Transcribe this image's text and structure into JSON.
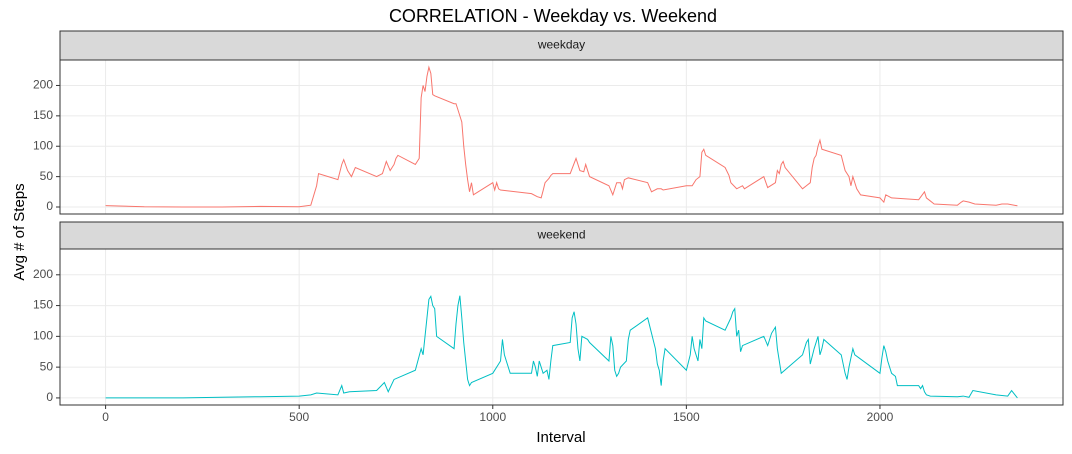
{
  "chart_data": {
    "type": "line",
    "facet": true,
    "title": "CORRELATION - Weekday vs. Weekend",
    "x_label": "Interval",
    "y_label": "Avg # of Steps",
    "xlim": [
      -117.75,
      2472.75
    ],
    "xticks": [
      0,
      500,
      1000,
      1500,
      2000
    ],
    "ylim": [
      -11.5,
      241.9
    ],
    "yticks": [
      0,
      50,
      100,
      150,
      200
    ],
    "grid": true,
    "series": [
      {
        "name": "weekday",
        "color": "#f8766d",
        "x": [
          0,
          100,
          200,
          300,
          400,
          500,
          530,
          545,
          550,
          600,
          610,
          615,
          625,
          635,
          645,
          700,
          715,
          725,
          735,
          745,
          750,
          755,
          800,
          810,
          815,
          820,
          825,
          830,
          835,
          840,
          845,
          850,
          900,
          905,
          910,
          915,
          920,
          925,
          930,
          935,
          940,
          945,
          950,
          1000,
          1005,
          1010,
          1015,
          1020,
          1100,
          1115,
          1125,
          1130,
          1135,
          1145,
          1150,
          1155,
          1200,
          1215,
          1225,
          1235,
          1240,
          1250,
          1300,
          1310,
          1320,
          1330,
          1335,
          1340,
          1350,
          1400,
          1410,
          1425,
          1430,
          1435,
          1440,
          1500,
          1515,
          1525,
          1535,
          1540,
          1545,
          1550,
          1600,
          1610,
          1615,
          1630,
          1645,
          1650,
          1700,
          1710,
          1730,
          1735,
          1740,
          1745,
          1750,
          1755,
          1800,
          1810,
          1820,
          1825,
          1830,
          1835,
          1840,
          1845,
          1850,
          1900,
          1910,
          1920,
          1925,
          1930,
          1940,
          1950,
          2000,
          2010,
          2015,
          2030,
          2100,
          2115,
          2120,
          2130,
          2140,
          2200,
          2210,
          2215,
          2230,
          2245,
          2300,
          2315,
          2330,
          2355
        ],
        "values": [
          2.3,
          0.4,
          0,
          0,
          1,
          0.5,
          3,
          35,
          55,
          45,
          70,
          78,
          60,
          50,
          65,
          50,
          55,
          75,
          60,
          70,
          80,
          85,
          70,
          80,
          180,
          200,
          190,
          215,
          230,
          220,
          185,
          183,
          170,
          170,
          160,
          150,
          140,
          100,
          70,
          45,
          25,
          40,
          20,
          40,
          28,
          40,
          30,
          28,
          22,
          17,
          15,
          27,
          40,
          47,
          52,
          55,
          55,
          80,
          60,
          58,
          70,
          50,
          35,
          20,
          40,
          40,
          30,
          45,
          48,
          40,
          25,
          30,
          30,
          30,
          28,
          35,
          35,
          45,
          50,
          90,
          95,
          85,
          65,
          52,
          40,
          30,
          35,
          30,
          50,
          32,
          40,
          60,
          55,
          70,
          75,
          65,
          30,
          35,
          40,
          65,
          80,
          85,
          100,
          110,
          95,
          85,
          60,
          50,
          35,
          50,
          30,
          20,
          15,
          8,
          20,
          15,
          12,
          25,
          15,
          10,
          5,
          3,
          8,
          10,
          8,
          5,
          3,
          5,
          5,
          2
        ]
      },
      {
        "name": "weekend",
        "color": "#00bfc4",
        "x": [
          0,
          100,
          200,
          300,
          400,
          500,
          530,
          545,
          600,
          610,
          615,
          630,
          700,
          720,
          730,
          745,
          800,
          815,
          820,
          830,
          835,
          840,
          845,
          850,
          855,
          900,
          905,
          910,
          915,
          920,
          925,
          930,
          935,
          940,
          945,
          1000,
          1020,
          1025,
          1030,
          1035,
          1045,
          1100,
          1105,
          1110,
          1115,
          1120,
          1130,
          1140,
          1145,
          1150,
          1155,
          1200,
          1205,
          1210,
          1215,
          1220,
          1225,
          1230,
          1245,
          1250,
          1300,
          1305,
          1310,
          1315,
          1320,
          1325,
          1330,
          1345,
          1350,
          1355,
          1400,
          1410,
          1420,
          1425,
          1430,
          1435,
          1440,
          1445,
          1500,
          1510,
          1515,
          1520,
          1530,
          1535,
          1540,
          1545,
          1550,
          1600,
          1615,
          1620,
          1625,
          1630,
          1635,
          1640,
          1645,
          1700,
          1710,
          1720,
          1730,
          1735,
          1740,
          1745,
          1800,
          1810,
          1815,
          1820,
          1830,
          1840,
          1845,
          1850,
          1855,
          1900,
          1910,
          1915,
          1920,
          1930,
          1935,
          2000,
          2005,
          2010,
          2015,
          2020,
          2030,
          2040,
          2045,
          2100,
          2105,
          2110,
          2115,
          2120,
          2130,
          2200,
          2215,
          2230,
          2240,
          2300,
          2330,
          2340,
          2355
        ],
        "values": [
          0,
          0,
          0,
          1,
          2,
          3,
          5,
          8,
          5,
          20,
          8,
          10,
          12,
          25,
          10,
          30,
          45,
          80,
          70,
          130,
          160,
          165,
          150,
          145,
          100,
          80,
          120,
          150,
          166,
          130,
          90,
          60,
          30,
          20,
          25,
          40,
          60,
          95,
          70,
          60,
          40,
          40,
          60,
          50,
          35,
          60,
          40,
          45,
          30,
          60,
          85,
          90,
          130,
          140,
          120,
          80,
          60,
          100,
          95,
          90,
          60,
          100,
          85,
          45,
          35,
          40,
          50,
          60,
          95,
          110,
          130,
          105,
          80,
          55,
          45,
          20,
          60,
          80,
          45,
          70,
          100,
          80,
          60,
          95,
          80,
          130,
          125,
          110,
          130,
          140,
          145,
          100,
          110,
          75,
          85,
          100,
          85,
          105,
          115,
          80,
          60,
          40,
          70,
          90,
          95,
          55,
          80,
          100,
          70,
          80,
          95,
          70,
          40,
          30,
          50,
          80,
          70,
          40,
          65,
          85,
          75,
          60,
          40,
          35,
          20,
          20,
          15,
          20,
          10,
          5,
          3,
          2,
          3,
          1,
          12,
          5,
          3,
          12,
          0
        ]
      }
    ]
  }
}
